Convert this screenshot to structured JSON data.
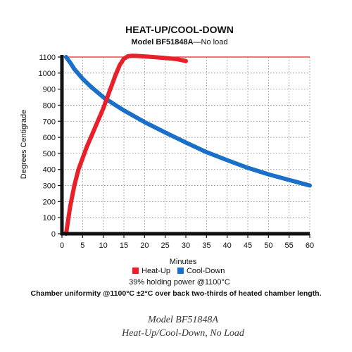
{
  "chart_data": {
    "type": "line",
    "title": "HEAT-UP/COOL-DOWN",
    "subtitle_bold": "Model BF51848A",
    "subtitle_rest": "—No load",
    "xlabel": "Minutes",
    "ylabel": "Degrees Centigrade",
    "xlim": [
      0,
      60
    ],
    "ylim": [
      0,
      1100
    ],
    "x_ticks": [
      0,
      5,
      10,
      15,
      20,
      25,
      30,
      35,
      40,
      45,
      50,
      55,
      60
    ],
    "y_ticks": [
      0,
      100,
      200,
      300,
      400,
      500,
      600,
      700,
      800,
      900,
      1000,
      1100
    ],
    "grid": "dotted",
    "reference_line": {
      "y": 1100,
      "color": "#e8202a"
    },
    "series": [
      {
        "name": "Heat-Up",
        "color": "#e8202a",
        "x": [
          1,
          2,
          3,
          4,
          5,
          6,
          7,
          8,
          9,
          10,
          11,
          12,
          13,
          14,
          15,
          16,
          17,
          18,
          20,
          22,
          25,
          28,
          30
        ],
        "y": [
          0,
          170,
          300,
          400,
          470,
          540,
          600,
          660,
          720,
          780,
          850,
          920,
          990,
          1050,
          1090,
          1105,
          1108,
          1107,
          1104,
          1100,
          1094,
          1086,
          1075
        ]
      },
      {
        "name": "Cool-Down",
        "color": "#1a6fc9",
        "x": [
          1,
          2,
          3,
          5,
          7,
          10,
          13,
          15,
          20,
          25,
          30,
          35,
          40,
          45,
          50,
          55,
          60
        ],
        "y": [
          1100,
          1065,
          1025,
          965,
          915,
          850,
          800,
          768,
          695,
          630,
          568,
          508,
          458,
          410,
          370,
          335,
          300
        ]
      }
    ],
    "legend": {
      "placement": "bottom"
    },
    "notes": [
      "39% holding power @1100°C",
      "Chamber uniformity @1100°C ±2°C over back two-thirds of heated chamber length."
    ]
  },
  "caption": {
    "line1": "Model BF51848A",
    "line2": "Heat-Up/Cool-Down, No Load"
  },
  "colors": {
    "frame": "#111111",
    "grid": "#7a7a7a"
  }
}
